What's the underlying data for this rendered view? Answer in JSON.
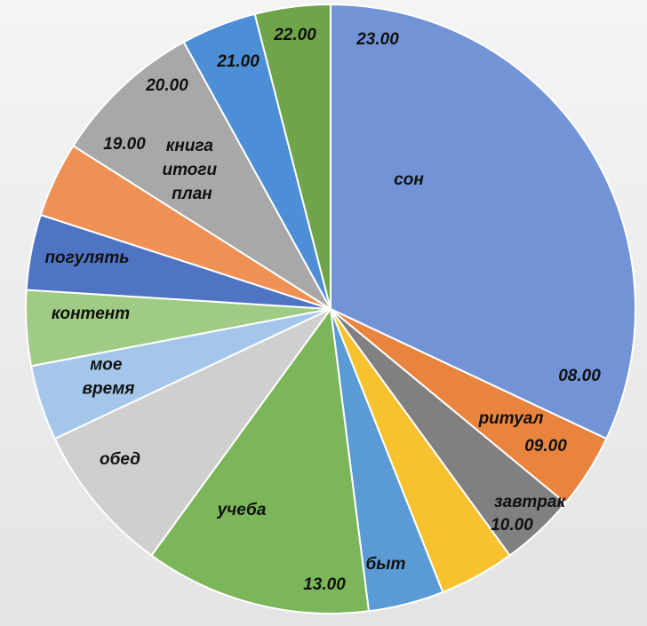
{
  "chart_data": {
    "type": "pie",
    "categories": [
      "сон",
      "ритуал",
      "завтрак",
      null,
      "быт",
      "учеба",
      "обед",
      "мое время",
      "контент",
      "погулять",
      null,
      "книга итоги план",
      null,
      null
    ],
    "values": [
      8,
      1,
      1,
      1,
      1,
      3,
      2,
      1,
      1,
      1,
      1,
      2,
      1,
      1
    ],
    "colors": [
      "#7293d6",
      "#e9843f",
      "#808080",
      "#f7c22e",
      "#5b9bd5",
      "#7cb65a",
      "#cfcfcf",
      "#a3c6ea",
      "#9fcb84",
      "#4f74c4",
      "#ef9054",
      "#a8a8a8",
      "#4d8fd6",
      "#6fa44a"
    ],
    "annotations": [
      "23.00",
      "08.00",
      "09.00",
      "10.00",
      "13.00",
      "19.00",
      "20.00",
      "21.00",
      "22.00"
    ]
  }
}
